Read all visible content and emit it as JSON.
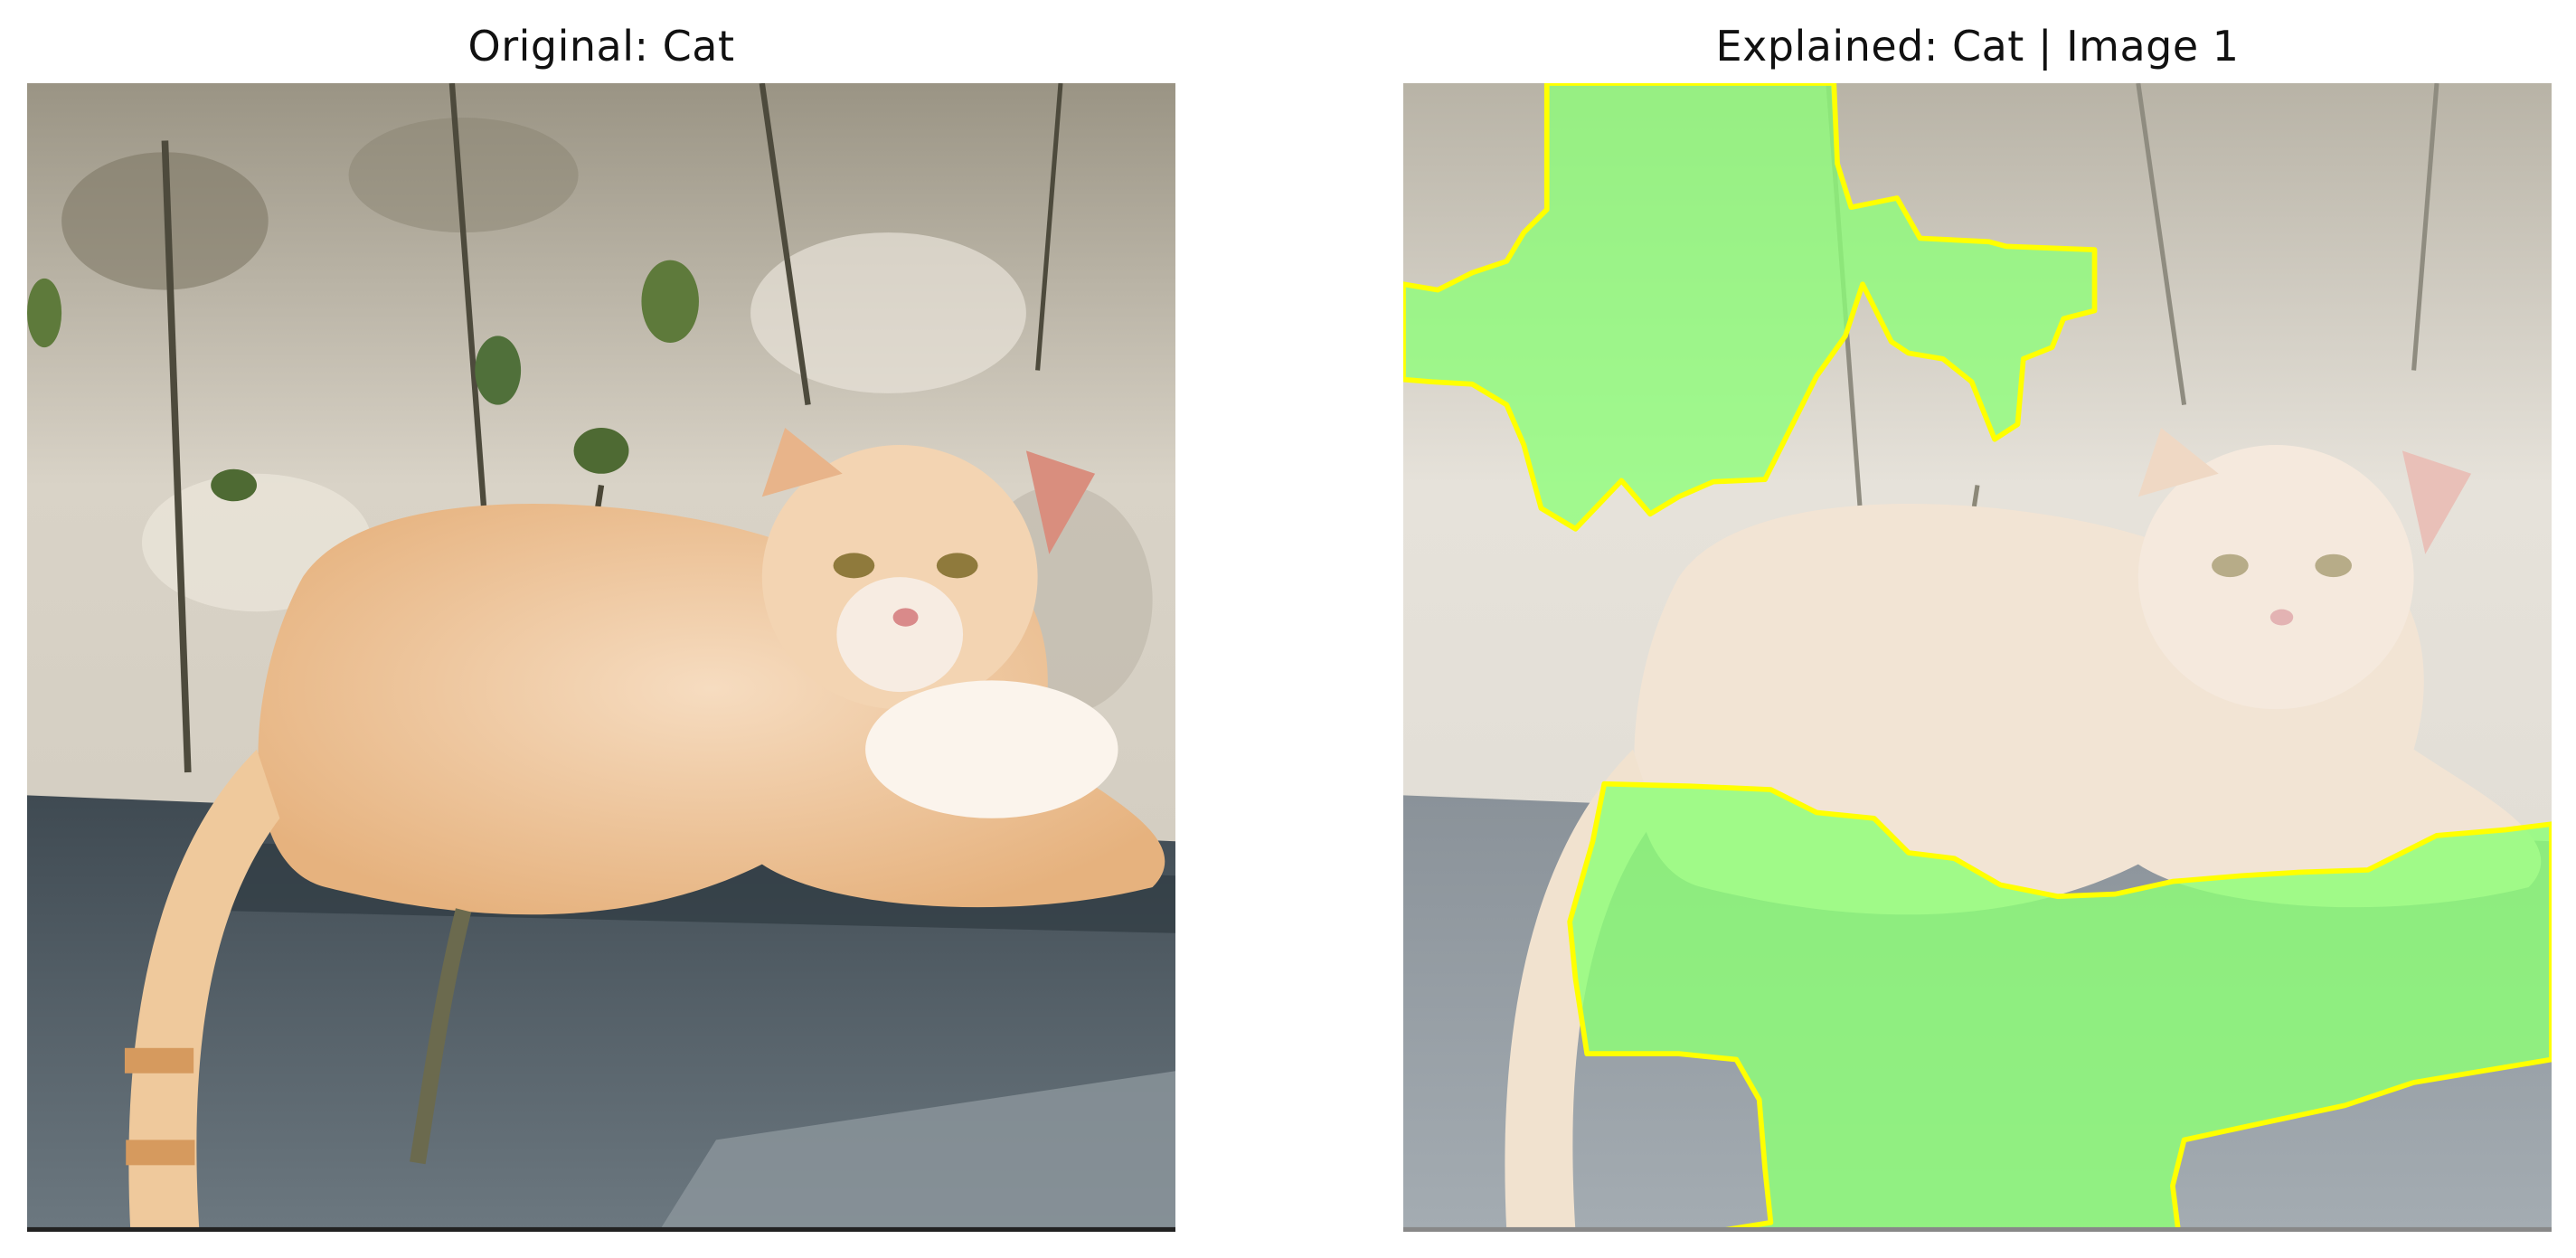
{
  "panels": {
    "original": {
      "title": "Original: Cat"
    },
    "explained": {
      "title": "Explained: Cat | Image 1"
    }
  },
  "colors": {
    "highlight_fill": "#7dff6a",
    "highlight_outline": "#ffff00",
    "cat_fur": "#f0c89a",
    "wall": "#d8d2c6",
    "ledge": "#5b6670"
  }
}
